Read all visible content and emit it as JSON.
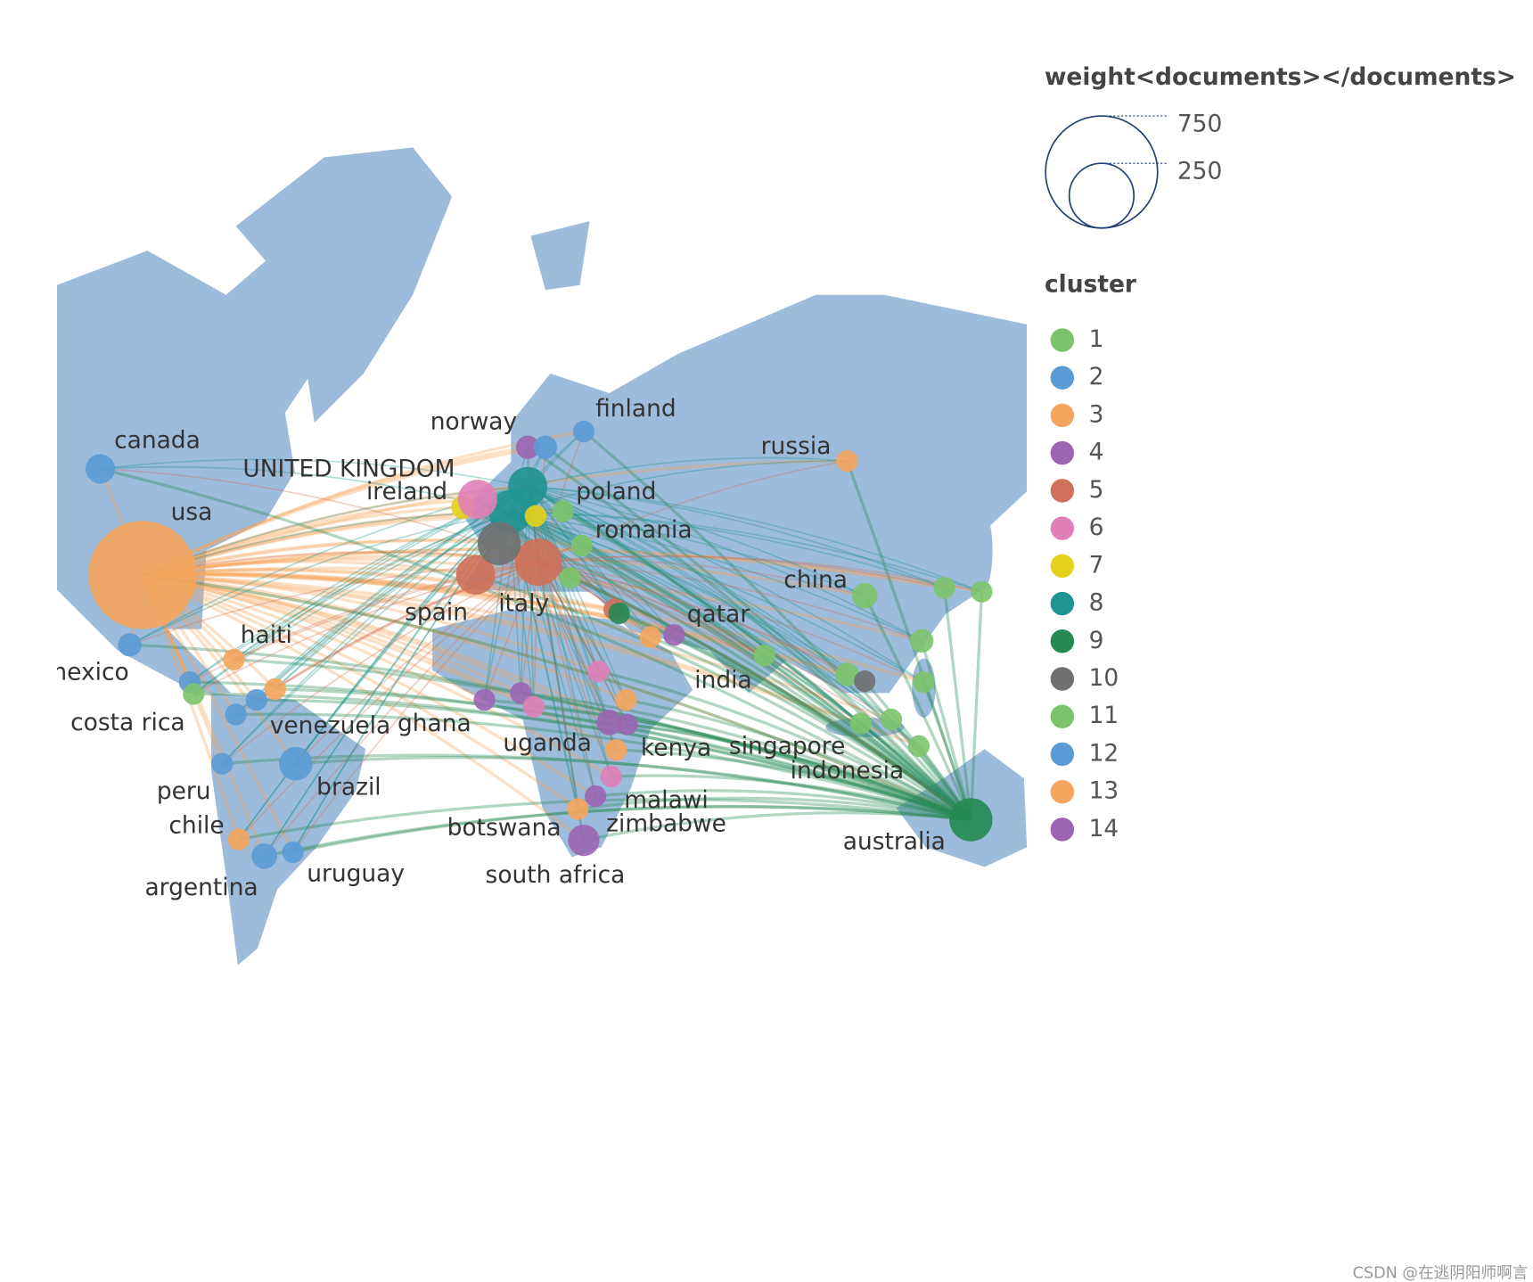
{
  "map": {
    "size_legend": {
      "title": "weight<documents></documents>",
      "ticks": [
        750,
        250
      ]
    },
    "cluster_legend": {
      "title": "cluster",
      "clusters": [
        {
          "name": "1",
          "color": "#7cc46c"
        },
        {
          "name": "2",
          "color": "#5b9bd5"
        },
        {
          "name": "3",
          "color": "#f5a55c"
        },
        {
          "name": "4",
          "color": "#9b65b3"
        },
        {
          "name": "5",
          "color": "#d0705a"
        },
        {
          "name": "6",
          "color": "#e07fb8"
        },
        {
          "name": "7",
          "color": "#e6d11a"
        },
        {
          "name": "8",
          "color": "#1f9490"
        },
        {
          "name": "9",
          "color": "#248a52"
        },
        {
          "name": "10",
          "color": "#707070"
        },
        {
          "name": "11",
          "color": "#7cc46c"
        },
        {
          "name": "12",
          "color": "#5b9bd5"
        },
        {
          "name": "13",
          "color": "#f5a55c"
        },
        {
          "name": "14",
          "color": "#9b65b3"
        }
      ]
    },
    "nodes": [
      {
        "label": "canada",
        "cluster": 2,
        "weight": 52
      },
      {
        "label": "usa",
        "cluster": 3,
        "weight": 698
      },
      {
        "label": "mexico",
        "cluster": 12,
        "weight": 33
      },
      {
        "label": "costa rica",
        "cluster": 12,
        "weight": 28
      },
      {
        "label": "haiti",
        "cluster": 13,
        "weight": 28
      },
      {
        "label": "venezuela",
        "cluster": 12,
        "weight": 28
      },
      {
        "label": "brazil",
        "cluster": 2,
        "weight": 67
      },
      {
        "label": "peru",
        "cluster": 12,
        "weight": 28
      },
      {
        "label": "chile",
        "cluster": 13,
        "weight": 28
      },
      {
        "label": "argentina",
        "cluster": 2,
        "weight": 39
      },
      {
        "label": "uruguay",
        "cluster": 12,
        "weight": 28
      },
      {
        "label": "UNITED KINGDOM",
        "cluster": 8,
        "weight": 112
      },
      {
        "label": "ireland",
        "cluster": 7,
        "weight": 33
      },
      {
        "label": "norway",
        "cluster": 4,
        "weight": 33
      },
      {
        "label": "finland",
        "cluster": 12,
        "weight": 28
      },
      {
        "label": "poland",
        "cluster": 1,
        "weight": 28
      },
      {
        "label": "romania",
        "cluster": 1,
        "weight": 28
      },
      {
        "label": "spain",
        "cluster": 5,
        "weight": 92
      },
      {
        "label": "italy",
        "cluster": 5,
        "weight": 133
      },
      {
        "label": "russia",
        "cluster": 13,
        "weight": 28
      },
      {
        "label": "china",
        "cluster": 11,
        "weight": 39
      },
      {
        "label": "qatar",
        "cluster": 14,
        "weight": 28
      },
      {
        "label": "india",
        "cluster": 1,
        "weight": 28
      },
      {
        "label": "singapore",
        "cluster": 11,
        "weight": 33
      },
      {
        "label": "indonesia",
        "cluster": 11,
        "weight": 28
      },
      {
        "label": "ghana",
        "cluster": 14,
        "weight": 28
      },
      {
        "label": "uganda",
        "cluster": 4,
        "weight": 39
      },
      {
        "label": "kenya",
        "cluster": 13,
        "weight": 28
      },
      {
        "label": "malawi",
        "cluster": 6,
        "weight": 28
      },
      {
        "label": "zimbabwe",
        "cluster": 14,
        "weight": 28
      },
      {
        "label": "botswana",
        "cluster": 13,
        "weight": 28
      },
      {
        "label": "south africa",
        "cluster": 4,
        "weight": 59
      },
      {
        "label": "australia",
        "cluster": 9,
        "weight": 112
      },
      {
        "label": null,
        "cluster": 8,
        "weight": 92
      },
      {
        "label": null,
        "cluster": 10,
        "weight": 112
      },
      {
        "label": null,
        "cluster": 6,
        "weight": 92
      },
      {
        "label": null,
        "cluster": 7,
        "weight": 28
      },
      {
        "label": null,
        "cluster": 2,
        "weight": 33
      },
      {
        "label": null,
        "cluster": 1,
        "weight": 28
      },
      {
        "label": null,
        "cluster": 11,
        "weight": 33
      },
      {
        "label": null,
        "cluster": 11,
        "weight": 28
      },
      {
        "label": null,
        "cluster": 11,
        "weight": 28
      },
      {
        "label": null,
        "cluster": 11,
        "weight": 28
      },
      {
        "label": null,
        "cluster": 11,
        "weight": 28
      },
      {
        "label": null,
        "cluster": 11,
        "weight": 28
      },
      {
        "label": null,
        "cluster": 10,
        "weight": 28
      },
      {
        "label": null,
        "cluster": 6,
        "weight": 28
      },
      {
        "label": null,
        "cluster": 13,
        "weight": 28
      },
      {
        "label": null,
        "cluster": 13,
        "weight": 28
      },
      {
        "label": null,
        "cluster": 13,
        "weight": 28
      },
      {
        "label": null,
        "cluster": 14,
        "weight": 28
      },
      {
        "label": null,
        "cluster": 4,
        "weight": 28
      },
      {
        "label": null,
        "cluster": 6,
        "weight": 28
      },
      {
        "label": null,
        "cluster": 1,
        "weight": 28
      },
      {
        "label": null,
        "cluster": 12,
        "weight": 28
      },
      {
        "label": null,
        "cluster": 5,
        "weight": 28
      },
      {
        "label": null,
        "cluster": 9,
        "weight": 28
      }
    ]
  },
  "watermark": "CSDN @在逃阴阳师啊言"
}
